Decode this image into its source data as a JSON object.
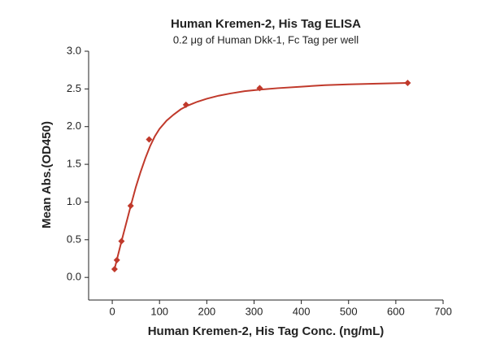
{
  "chart_data": {
    "type": "scatter",
    "title": "Human Kremen-2, His Tag ELISA",
    "subtitle": "0.2 μg of Human Dkk-1, Fc Tag per well",
    "x_label": "Human Kremen-2, His Tag Conc. (ng/mL)",
    "y_label": "Mean Abs.(OD450)",
    "x": [
      4.9,
      9.8,
      19.5,
      39,
      78,
      156,
      312,
      625
    ],
    "values": [
      0.11,
      0.23,
      0.48,
      0.95,
      1.83,
      2.29,
      2.51,
      2.58
    ],
    "color": "#c0392b",
    "curve": {
      "x": [
        4,
        10,
        20,
        30,
        40,
        50,
        60,
        70,
        80,
        90,
        100,
        115,
        130,
        145,
        160,
        180,
        200,
        225,
        250,
        280,
        312,
        350,
        400,
        450,
        500,
        560,
        625
      ],
      "values": [
        0.09,
        0.24,
        0.49,
        0.73,
        0.97,
        1.2,
        1.4,
        1.58,
        1.74,
        1.87,
        1.97,
        2.08,
        2.16,
        2.23,
        2.28,
        2.33,
        2.37,
        2.41,
        2.44,
        2.47,
        2.49,
        2.51,
        2.53,
        2.55,
        2.56,
        2.57,
        2.58
      ],
      "color": "#c0392b"
    },
    "xlim": [
      -50,
      700
    ],
    "xticks": [
      0,
      100,
      200,
      300,
      400,
      500,
      600,
      700
    ],
    "ylim": [
      -0.3,
      3.0
    ],
    "yticks": [
      {
        "value": 0,
        "label": "0.0"
      },
      0.5,
      {
        "value": 1,
        "label": "1.0"
      },
      1.5,
      {
        "value": 2,
        "label": "2.0"
      },
      2.5,
      {
        "value": 3,
        "label": "3.0"
      }
    ],
    "grid": false
  }
}
